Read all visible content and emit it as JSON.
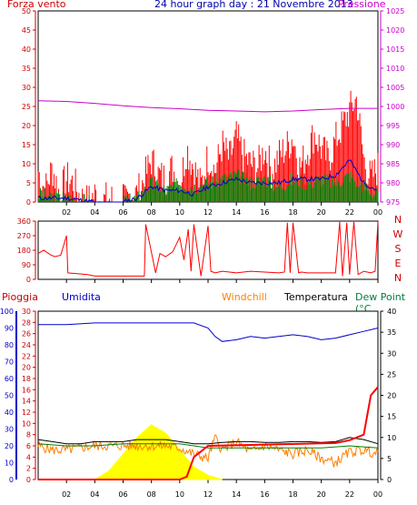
{
  "header": {
    "left_title": "Forza vento",
    "center_title": "24 hour graph day : 21 Novembre 2013",
    "right_title": "Pressione"
  },
  "labels": {
    "pioggia": "Pioggia",
    "umidita": "Umidita",
    "windchill": "Windchill",
    "temperatura": "Temperatura",
    "dewpoint": "Dew Point (°C",
    "directions": [
      "N",
      "W",
      "S",
      "E",
      "N"
    ]
  },
  "colors": {
    "wind": "#ff0000",
    "wind_avg": "#0000cc",
    "wind_low": "#008000",
    "pressure": "#cc00cc",
    "axis_red": "#cc0000",
    "humidity": "#0000cc",
    "windchill": "#ff8000",
    "temperature": "#000000",
    "dewpoint": "#008000",
    "sun": "#ffff00",
    "rain": "#ff0000"
  },
  "chart_data": [
    {
      "type": "line",
      "name": "wind-pressure",
      "xticks": [
        "02",
        "04",
        "06",
        "08",
        "10",
        "12",
        "14",
        "16",
        "18",
        "20",
        "22",
        "00"
      ],
      "y_left_ticks": [
        0,
        5,
        10,
        15,
        20,
        25,
        30,
        35,
        40,
        45,
        50
      ],
      "y_right_ticks": [
        975,
        980,
        985,
        990,
        995,
        1000,
        1005,
        1010,
        1015,
        1020,
        1025
      ],
      "ylim_left": [
        0,
        50
      ],
      "ylim_right": [
        975,
        1025
      ],
      "pressure": {
        "x": [
          0,
          2,
          4,
          6,
          8,
          10,
          12,
          14,
          16,
          18,
          20,
          22,
          24
        ],
        "y": [
          1001.5,
          1001.3,
          1000.8,
          1000.2,
          999.7,
          999.4,
          999.0,
          998.8,
          998.6,
          998.8,
          999.2,
          999.5,
          999.5
        ]
      },
      "wind": {
        "x": [
          0,
          0.5,
          1,
          1.5,
          2,
          2.5,
          3,
          3.5,
          4,
          4.5,
          5,
          5.5,
          6,
          6.5,
          7,
          7.5,
          8,
          8.5,
          9,
          9.5,
          10,
          10.5,
          11,
          11.5,
          12,
          12.5,
          13,
          13.5,
          14,
          14.5,
          15,
          15.5,
          16,
          16.5,
          17,
          17.5,
          18,
          18.5,
          19,
          19.5,
          20,
          20.5,
          21,
          21.5,
          22,
          22.5,
          23,
          23.5,
          24
        ],
        "y": [
          8,
          3,
          9,
          2,
          6,
          5,
          1,
          0,
          2,
          0,
          1,
          0,
          0,
          2,
          2,
          6,
          11,
          7,
          6,
          9,
          4,
          14,
          9,
          4,
          12,
          8,
          15,
          11,
          17,
          12,
          10,
          9,
          14,
          8,
          12,
          14,
          17,
          9,
          13,
          18,
          14,
          11,
          16,
          20,
          24,
          27,
          11,
          6,
          9
        ]
      },
      "wind_avg": {
        "x": [
          0,
          2,
          4,
          6,
          7,
          8,
          9,
          10,
          11,
          12,
          13,
          14,
          15,
          16,
          17,
          18,
          19,
          20,
          21,
          22,
          23,
          24
        ],
        "y": [
          1,
          1,
          0,
          0,
          1,
          4,
          3,
          3,
          2,
          4,
          5,
          6,
          5,
          5,
          5,
          6,
          6,
          6,
          7,
          11,
          5,
          3
        ]
      },
      "wind_low": {
        "x": [
          0,
          2,
          4,
          6,
          7,
          8,
          9,
          10,
          11,
          12,
          13,
          14,
          15,
          16,
          17,
          18,
          19,
          20,
          21,
          22,
          23,
          24
        ],
        "y": [
          2,
          1,
          0,
          0,
          1,
          5,
          3,
          5,
          4,
          5,
          6,
          7,
          5,
          6,
          4,
          6,
          5,
          6,
          5,
          7,
          4,
          2
        ]
      }
    },
    {
      "type": "line",
      "name": "wind-direction",
      "xticks": [
        "02",
        "04",
        "06",
        "08",
        "10",
        "12",
        "14",
        "16",
        "18",
        "20",
        "22",
        "00"
      ],
      "yticks": [
        0,
        90,
        180,
        270,
        360
      ],
      "ylim": [
        0,
        360
      ],
      "direction": {
        "x": [
          0,
          0.4,
          0.9,
          1.2,
          1.6,
          2.0,
          2.1,
          3.5,
          4.0,
          5.0,
          6.0,
          7.5,
          7.6,
          8.3,
          8.6,
          9.0,
          9.5,
          10.0,
          10.3,
          10.6,
          10.8,
          11.0,
          11.5,
          12.0,
          12.2,
          12.5,
          13.0,
          14.0,
          15.0,
          16.0,
          17.0,
          17.4,
          17.6,
          17.8,
          18.0,
          18.4,
          18.6,
          19.0,
          20.0,
          21.0,
          21.3,
          21.5,
          21.8,
          22.0,
          22.3,
          22.6,
          23.0,
          23.5,
          23.8,
          24.0
        ],
        "y": [
          160,
          180,
          150,
          140,
          150,
          270,
          40,
          30,
          20,
          20,
          20,
          20,
          340,
          40,
          160,
          140,
          170,
          260,
          120,
          310,
          50,
          340,
          20,
          330,
          50,
          40,
          50,
          40,
          50,
          45,
          40,
          45,
          350,
          40,
          350,
          40,
          45,
          40,
          40,
          40,
          355,
          20,
          350,
          30,
          355,
          30,
          50,
          40,
          50,
          355
        ]
      }
    },
    {
      "type": "line",
      "name": "rain-humidity-temperature",
      "xticks": [
        "02",
        "04",
        "06",
        "08",
        "10",
        "12",
        "14",
        "16",
        "18",
        "20",
        "22",
        "00"
      ],
      "y_humidity_ticks": [
        0,
        10,
        20,
        30,
        40,
        50,
        60,
        70,
        80,
        90,
        100
      ],
      "y_rain_ticks": [
        0,
        2,
        4,
        6,
        8,
        10,
        12,
        14,
        16,
        18,
        20,
        22,
        24,
        26,
        28,
        30
      ],
      "y_temp_ticks": [
        0,
        5,
        10,
        15,
        20,
        25,
        30,
        35,
        40
      ],
      "ylim_humidity": [
        0,
        100
      ],
      "ylim_rain": [
        0,
        30
      ],
      "ylim_temp": [
        0,
        40
      ],
      "humidity": {
        "x": [
          0,
          2,
          4,
          6,
          8,
          10,
          11,
          12,
          12.5,
          13,
          14,
          15,
          16,
          17,
          18,
          19,
          20,
          21,
          22,
          23,
          24
        ],
        "y": [
          92,
          92,
          93,
          93,
          93,
          93,
          93,
          90,
          85,
          82,
          83,
          85,
          84,
          85,
          86,
          85,
          83,
          84,
          86,
          88,
          90
        ]
      },
      "temperature": {
        "x": [
          0,
          1,
          2,
          3,
          4,
          5,
          6,
          7,
          8,
          9,
          10,
          11,
          12,
          13,
          14,
          15,
          16,
          17,
          18,
          19,
          20,
          21,
          22,
          23,
          24
        ],
        "y": [
          9.5,
          9,
          8.5,
          8.5,
          9,
          9,
          9,
          9.5,
          9.5,
          9.5,
          9,
          8.5,
          8.5,
          8.8,
          9,
          9,
          8.8,
          8.8,
          9,
          9,
          8.8,
          9,
          10,
          9.5,
          8.5
        ]
      },
      "windchill": {
        "x": [
          0,
          1,
          2,
          3,
          4,
          5,
          6,
          7,
          8,
          9,
          10,
          11,
          12,
          12.5,
          13,
          14,
          15,
          16,
          17,
          18,
          19,
          20,
          21,
          22,
          23,
          24
        ],
        "y": [
          8,
          7,
          7,
          7.5,
          8,
          8,
          8,
          8,
          8,
          8,
          7.5,
          6,
          5,
          10,
          7,
          9,
          6.5,
          8,
          7,
          6,
          7,
          5,
          4,
          6.5,
          7,
          6
        ]
      },
      "dewpoint": {
        "x": [
          0,
          2,
          4,
          6,
          8,
          10,
          12,
          14,
          16,
          18,
          20,
          22,
          24
        ],
        "y": [
          8.5,
          8,
          8,
          8.5,
          8.5,
          8.5,
          7.5,
          7.5,
          7.5,
          7.5,
          7.5,
          8,
          7.5
        ]
      },
      "solar": {
        "x": [
          4,
          5,
          6,
          7,
          8,
          9,
          10,
          11,
          12,
          13
        ],
        "y": [
          0,
          2,
          6,
          10,
          13,
          11,
          7,
          3,
          1,
          0
        ]
      },
      "rain": {
        "x": [
          0,
          5,
          7,
          8,
          9,
          10,
          10.5,
          11,
          11.5,
          12,
          21,
          22,
          23,
          23.5,
          24
        ],
        "y": [
          0,
          0,
          0,
          0,
          0,
          0,
          0.5,
          4,
          5,
          6,
          6.5,
          7,
          8,
          15,
          16.5
        ]
      }
    }
  ]
}
